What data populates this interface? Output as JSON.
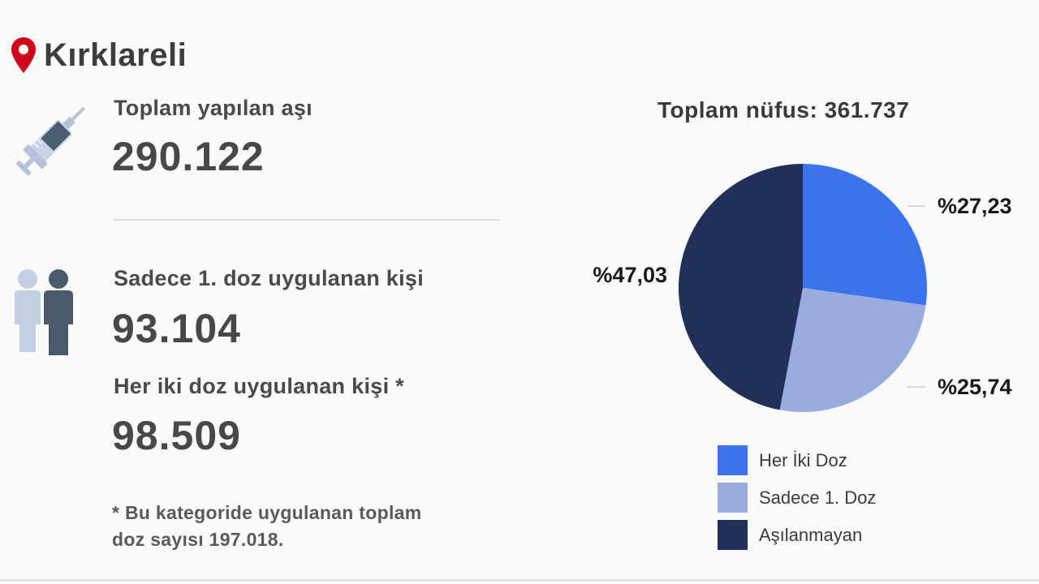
{
  "header": {
    "city": "Kırklareli"
  },
  "stats": {
    "total_label": "Toplam yapılan aşı",
    "total_value": "290.122",
    "first_dose_label": "Sadece 1. doz uygulanan kişi",
    "first_dose_value": "93.104",
    "both_doses_label": "Her iki doz uygulanan kişi *",
    "both_doses_value": "98.509",
    "footnote_line1": "* Bu kategoride uygulanan toplam",
    "footnote_line2": "doz sayısı 197.018."
  },
  "icons": {
    "location": "location-pin-icon",
    "vaccine": "syringe-icon",
    "people": "people-icon"
  },
  "colors": {
    "pin": "#d0021b",
    "both": "#3b73ec",
    "first": "#98acdf",
    "none": "#20305b"
  },
  "chart_data": {
    "type": "pie",
    "title": "Toplam nüfus: 361.737",
    "slices": [
      {
        "name": "Her İki Doz",
        "value": 27.23,
        "label": "%27,23",
        "color": "#3b73ec"
      },
      {
        "name": "Sadece 1. Doz",
        "value": 25.74,
        "label": "%25,74",
        "color": "#98acdf"
      },
      {
        "name": "Aşılanmayan",
        "value": 47.03,
        "label": "%47,03",
        "color": "#20305b"
      }
    ],
    "legend_position": "bottom"
  }
}
